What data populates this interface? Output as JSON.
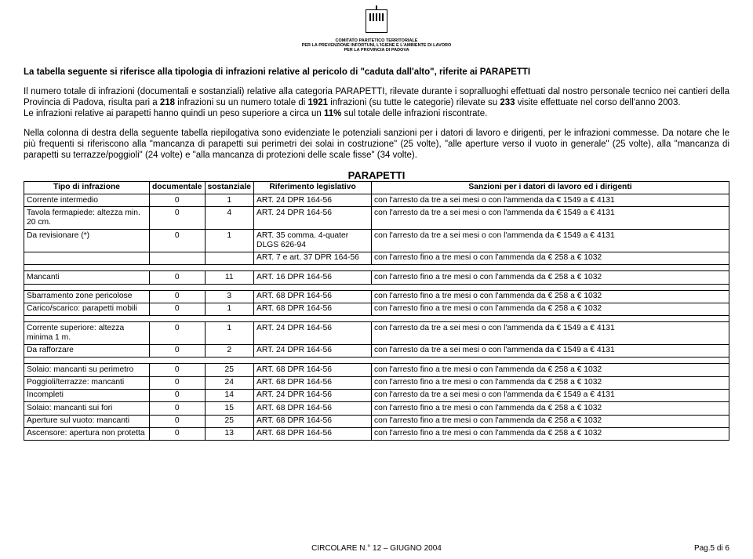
{
  "logo": {
    "line1": "COMITATO PARITETICO TERRITORIALE",
    "line2": "PER LA PREVENZIONE INFORTUNI, L'IGIENE E L'AMBIENTE DI LAVORO",
    "line3": "PER LA PROVINCIA DI PADOVA"
  },
  "intro": {
    "p1a": "La tabella seguente si riferisce alla tipologia di infrazioni relative al pericolo di \"caduta dall'alto\", riferite ai ",
    "p1b": "PARAPETTI",
    "p2a": "Il numero totale di infrazioni (documentali e sostanziali) relative alla categoria PARAPETTI, rilevate durante i sopralluoghi effettuati dal nostro personale tecnico nei cantieri della Provincia di Padova, risulta pari a ",
    "p2b": "218",
    "p2c": " infrazioni su un numero totale di ",
    "p2d": "1921",
    "p2e": " infrazioni (su tutte le categorie) rilevate su ",
    "p2f": "233",
    "p2g": " visite effettuate nel corso dell'anno 2003.",
    "p3a": "Le infrazioni relative ai parapetti hanno quindi un peso superiore a circa un ",
    "p3b": "11%",
    "p3c": " sul totale delle infrazioni riscontrate.",
    "p4": "Nella colonna di destra della seguente tabella riepilogativa sono evidenziate le potenziali sanzioni per i datori di lavoro e dirigenti, per le infrazioni commesse. Da notare che le più frequenti si riferiscono alla \"mancanza di parapetti sui perimetri dei solai in costruzione\" (25 volte), \"alle aperture verso il vuoto in generale\" (25 volte), alla \"mancanza di parapetti su terrazze/poggioli\" (24 volte) e \"alla mancanza di protezioni delle scale fisse\" (34 volte)."
  },
  "table": {
    "title": "PARAPETTI",
    "headers": {
      "tipo": "Tipo di infrazione",
      "doc": "documentale",
      "sost": "sostanziale",
      "rif": "Riferimento legislativo",
      "sanz": "Sanzioni per i datori di lavoro ed i dirigenti"
    },
    "rows": [
      {
        "tipo": "Corrente intermedio",
        "doc": "0",
        "sost": "1",
        "rif": "ART. 24 DPR 164-56",
        "sanz": "con l'arresto da tre a sei mesi o con l'ammenda da € 1549 a € 4131"
      },
      {
        "tipo": "Tavola fermapiede: altezza min. 20 cm.",
        "doc": "0",
        "sost": "4",
        "rif": "ART. 24 DPR 164-56",
        "sanz": "con l'arresto da tre a sei mesi o con l'ammenda da € 1549 a € 4131"
      },
      {
        "tipo": "Da revisionare (*)",
        "doc": "0",
        "sost": "1",
        "rif": "ART. 35 comma. 4-quater DLGS 626-94",
        "sanz": "con l'arresto da tre a sei mesi o con l'ammenda da € 1549 a € 4131"
      },
      {
        "tipo": "",
        "doc": "",
        "sost": "",
        "rif": "ART. 7 e art. 37 DPR 164-56",
        "sanz": "con l'arresto fino a tre mesi o con l'ammenda da € 258 a € 1032"
      },
      {
        "tipo": "Mancanti",
        "doc": "0",
        "sost": "11",
        "rif": "ART. 16 DPR 164-56",
        "sanz": "con l'arresto fino a tre mesi o con l'ammenda da € 258 a € 1032",
        "spaceBefore": true
      },
      {
        "tipo": "Sbarramento zone pericolose",
        "doc": "0",
        "sost": "3",
        "rif": "ART. 68 DPR 164-56",
        "sanz": "con l'arresto fino a tre mesi o con l'ammenda da € 258 a € 1032",
        "spaceBefore": true
      },
      {
        "tipo": "Carico/scarico: parapetti mobili",
        "doc": "0",
        "sost": "1",
        "rif": "ART. 68 DPR 164-56",
        "sanz": "con l'arresto fino a tre mesi o con l'ammenda da € 258 a € 1032"
      },
      {
        "tipo": "Corrente superiore: altezza minima 1 m.",
        "doc": "0",
        "sost": "1",
        "rif": "ART. 24 DPR 164-56",
        "sanz": "con l'arresto da tre a sei mesi o con l'ammenda da € 1549 a € 4131",
        "spaceBefore": true
      },
      {
        "tipo": "Da rafforzare",
        "doc": "0",
        "sost": "2",
        "rif": "ART. 24 DPR 164-56",
        "sanz": "con l'arresto da tre a sei mesi o con l'ammenda da € 1549 a € 4131"
      },
      {
        "tipo": "Solaio: mancanti su perimetro",
        "doc": "0",
        "sost": "25",
        "rif": "ART. 68 DPR 164-56",
        "sanz": "con l'arresto fino a tre mesi o con l'ammenda da € 258 a € 1032",
        "spaceBefore": true
      },
      {
        "tipo": "Poggioli/terrazze: mancanti",
        "doc": "0",
        "sost": "24",
        "rif": "ART. 68 DPR 164-56",
        "sanz": "con l'arresto fino a tre mesi o con l'ammenda da € 258 a € 1032"
      },
      {
        "tipo": "Incompleti",
        "doc": "0",
        "sost": "14",
        "rif": "ART. 24 DPR 164-56",
        "sanz": "con l'arresto da tre a sei mesi o con l'ammenda da € 1549 a € 4131"
      },
      {
        "tipo": "Solaio: mancanti sui fori",
        "doc": "0",
        "sost": "15",
        "rif": "ART. 68 DPR 164-56",
        "sanz": "con l'arresto fino a tre mesi o con l'ammenda da € 258 a € 1032"
      },
      {
        "tipo": "Aperture sul vuoto: mancanti",
        "doc": "0",
        "sost": "25",
        "rif": "ART. 68 DPR 164-56",
        "sanz": "con l'arresto fino a tre mesi o con l'ammenda da € 258 a € 1032"
      },
      {
        "tipo": "Ascensore: apertura non protetta",
        "doc": "0",
        "sost": "13",
        "rif": "ART. 68 DPR 164-56",
        "sanz": "con l'arresto fino a tre mesi o con l'ammenda da € 258 a € 1032"
      }
    ]
  },
  "footer": {
    "center": "CIRCOLARE N.° 12 – GIUGNO 2004",
    "page": "Pag.5 di 6"
  }
}
